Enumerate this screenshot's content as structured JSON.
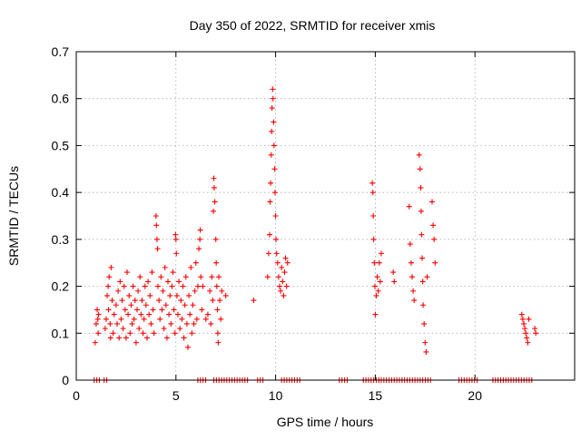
{
  "chart_data": {
    "type": "scatter",
    "title": "Day 350 of 2022, SRMTID for receiver xmis",
    "xlabel": "GPS time / hours",
    "ylabel": "SRMTID / TECUs",
    "xlim": [
      0,
      25
    ],
    "ylim": [
      0,
      0.7
    ],
    "xticks": [
      0,
      5,
      10,
      15,
      20
    ],
    "xtick_labels": [
      "0",
      "5",
      "10",
      "15",
      "20"
    ],
    "yticks": [
      0,
      0.1,
      0.2,
      0.3,
      0.4,
      0.5,
      0.6,
      0.7
    ],
    "ytick_labels": [
      "0",
      "0.1",
      "0.2",
      "0.3",
      "0.4",
      "0.5",
      "0.6",
      "0.7"
    ],
    "grid": true,
    "legend": "none",
    "marker": "plus",
    "color": "#ff0000",
    "series": [
      {
        "name": "SRMTID",
        "points": [
          [
            0.95,
            0.08
          ],
          [
            1.0,
            0.12
          ],
          [
            1.05,
            0.15
          ],
          [
            1.08,
            0.13
          ],
          [
            1.1,
            0.1
          ],
          [
            1.12,
            0.14
          ],
          [
            1.45,
            0.11
          ],
          [
            1.5,
            0.13
          ],
          [
            1.55,
            0.18
          ],
          [
            1.6,
            0.2
          ],
          [
            1.62,
            0.15
          ],
          [
            1.65,
            0.22
          ],
          [
            1.7,
            0.12
          ],
          [
            1.72,
            0.09
          ],
          [
            1.75,
            0.24
          ],
          [
            1.8,
            0.17
          ],
          [
            1.85,
            0.1
          ],
          [
            1.9,
            0.14
          ],
          [
            2.0,
            0.16
          ],
          [
            2.05,
            0.12
          ],
          [
            2.1,
            0.19
          ],
          [
            2.15,
            0.09
          ],
          [
            2.2,
            0.21
          ],
          [
            2.25,
            0.13
          ],
          [
            2.3,
            0.17
          ],
          [
            2.35,
            0.11
          ],
          [
            2.4,
            0.2
          ],
          [
            2.45,
            0.15
          ],
          [
            2.5,
            0.09
          ],
          [
            2.55,
            0.23
          ],
          [
            2.6,
            0.14
          ],
          [
            2.65,
            0.18
          ],
          [
            2.7,
            0.1
          ],
          [
            2.75,
            0.16
          ],
          [
            2.8,
            0.12
          ],
          [
            2.85,
            0.2
          ],
          [
            2.9,
            0.13
          ],
          [
            2.95,
            0.17
          ],
          [
            3.0,
            0.08
          ],
          [
            3.05,
            0.15
          ],
          [
            3.1,
            0.19
          ],
          [
            3.15,
            0.11
          ],
          [
            3.2,
            0.22
          ],
          [
            3.25,
            0.14
          ],
          [
            3.3,
            0.17
          ],
          [
            3.35,
            0.1
          ],
          [
            3.4,
            0.13
          ],
          [
            3.45,
            0.2
          ],
          [
            3.5,
            0.16
          ],
          [
            3.55,
            0.09
          ],
          [
            3.6,
            0.21
          ],
          [
            3.65,
            0.14
          ],
          [
            3.7,
            0.18
          ],
          [
            3.75,
            0.12
          ],
          [
            3.8,
            0.23
          ],
          [
            3.85,
            0.15
          ],
          [
            3.9,
            0.1
          ],
          [
            4.0,
            0.35
          ],
          [
            4.02,
            0.33
          ],
          [
            4.05,
            0.3
          ],
          [
            4.08,
            0.28
          ],
          [
            4.1,
            0.2
          ],
          [
            4.15,
            0.17
          ],
          [
            4.2,
            0.13
          ],
          [
            4.25,
            0.22
          ],
          [
            4.3,
            0.15
          ],
          [
            4.35,
            0.19
          ],
          [
            4.4,
            0.11
          ],
          [
            4.45,
            0.24
          ],
          [
            4.5,
            0.16
          ],
          [
            4.55,
            0.09
          ],
          [
            4.6,
            0.21
          ],
          [
            4.65,
            0.14
          ],
          [
            4.7,
            0.18
          ],
          [
            4.75,
            0.12
          ],
          [
            4.8,
            0.2
          ],
          [
            4.85,
            0.23
          ],
          [
            4.9,
            0.15
          ],
          [
            4.95,
            0.1
          ],
          [
            4.98,
            0.31
          ],
          [
            5.0,
            0.3
          ],
          [
            5.02,
            0.27
          ],
          [
            5.05,
            0.18
          ],
          [
            5.1,
            0.14
          ],
          [
            5.15,
            0.21
          ],
          [
            5.2,
            0.11
          ],
          [
            5.25,
            0.17
          ],
          [
            5.3,
            0.13
          ],
          [
            5.35,
            0.2
          ],
          [
            5.4,
            0.09
          ],
          [
            5.45,
            0.16
          ],
          [
            5.5,
            0.22
          ],
          [
            5.55,
            0.12
          ],
          [
            5.6,
            0.07
          ],
          [
            5.65,
            0.18
          ],
          [
            5.7,
            0.14
          ],
          [
            5.75,
            0.24
          ],
          [
            5.8,
            0.1
          ],
          [
            5.85,
            0.16
          ],
          [
            5.9,
            0.12
          ],
          [
            5.95,
            0.19
          ],
          [
            6.0,
            0.25
          ],
          [
            6.05,
            0.13
          ],
          [
            6.1,
            0.2
          ],
          [
            6.15,
            0.28
          ],
          [
            6.2,
            0.3
          ],
          [
            6.22,
            0.32
          ],
          [
            6.25,
            0.22
          ],
          [
            6.3,
            0.15
          ],
          [
            6.35,
            0.2
          ],
          [
            6.5,
            0.13
          ],
          [
            6.6,
            0.14
          ],
          [
            6.7,
            0.19
          ],
          [
            6.75,
            0.12
          ],
          [
            6.8,
            0.22
          ],
          [
            6.85,
            0.17
          ],
          [
            6.88,
            0.36
          ],
          [
            6.9,
            0.43
          ],
          [
            6.92,
            0.41
          ],
          [
            6.95,
            0.38
          ],
          [
            7.0,
            0.3
          ],
          [
            7.02,
            0.25
          ],
          [
            7.05,
            0.2
          ],
          [
            7.08,
            0.15
          ],
          [
            7.1,
            0.1
          ],
          [
            7.12,
            0.08
          ],
          [
            7.15,
            0.22
          ],
          [
            7.2,
            0.17
          ],
          [
            7.25,
            0.13
          ],
          [
            7.3,
            0.19
          ],
          [
            7.5,
            0.18
          ],
          [
            8.9,
            0.17
          ],
          [
            9.6,
            0.22
          ],
          [
            9.65,
            0.27
          ],
          [
            9.7,
            0.31
          ],
          [
            9.72,
            0.38
          ],
          [
            9.75,
            0.42
          ],
          [
            9.78,
            0.48
          ],
          [
            9.8,
            0.53
          ],
          [
            9.82,
            0.58
          ],
          [
            9.85,
            0.62
          ],
          [
            9.87,
            0.6
          ],
          [
            9.9,
            0.55
          ],
          [
            9.92,
            0.5
          ],
          [
            9.95,
            0.45
          ],
          [
            9.97,
            0.4
          ],
          [
            10.0,
            0.35
          ],
          [
            10.02,
            0.3
          ],
          [
            10.05,
            0.27
          ],
          [
            10.1,
            0.25
          ],
          [
            10.15,
            0.22
          ],
          [
            10.2,
            0.2
          ],
          [
            10.25,
            0.19
          ],
          [
            10.3,
            0.24
          ],
          [
            10.35,
            0.21
          ],
          [
            10.4,
            0.18
          ],
          [
            10.45,
            0.23
          ],
          [
            10.5,
            0.26
          ],
          [
            10.55,
            0.2
          ],
          [
            10.6,
            0.25
          ],
          [
            14.85,
            0.42
          ],
          [
            14.88,
            0.4
          ],
          [
            14.9,
            0.35
          ],
          [
            14.92,
            0.3
          ],
          [
            14.95,
            0.25
          ],
          [
            14.98,
            0.2
          ],
          [
            15.0,
            0.14
          ],
          [
            15.05,
            0.18
          ],
          [
            15.1,
            0.22
          ],
          [
            15.15,
            0.19
          ],
          [
            15.2,
            0.25
          ],
          [
            15.25,
            0.21
          ],
          [
            15.3,
            0.27
          ],
          [
            15.9,
            0.23
          ],
          [
            15.95,
            0.21
          ],
          [
            16.7,
            0.37
          ],
          [
            16.75,
            0.29
          ],
          [
            16.8,
            0.25
          ],
          [
            16.85,
            0.22
          ],
          [
            16.9,
            0.19
          ],
          [
            16.95,
            0.17
          ],
          [
            17.2,
            0.48
          ],
          [
            17.25,
            0.45
          ],
          [
            17.28,
            0.41
          ],
          [
            17.3,
            0.36
          ],
          [
            17.32,
            0.31
          ],
          [
            17.35,
            0.26
          ],
          [
            17.38,
            0.21
          ],
          [
            17.4,
            0.16
          ],
          [
            17.45,
            0.12
          ],
          [
            17.5,
            0.08
          ],
          [
            17.55,
            0.06
          ],
          [
            17.6,
            0.22
          ],
          [
            17.85,
            0.38
          ],
          [
            17.9,
            0.33
          ],
          [
            17.95,
            0.3
          ],
          [
            18.0,
            0.25
          ],
          [
            22.35,
            0.14
          ],
          [
            22.4,
            0.13
          ],
          [
            22.45,
            0.12
          ],
          [
            22.5,
            0.11
          ],
          [
            22.55,
            0.1
          ],
          [
            22.6,
            0.09
          ],
          [
            22.65,
            0.08
          ],
          [
            22.7,
            0.13
          ],
          [
            23.0,
            0.11
          ],
          [
            23.05,
            0.1
          ]
        ],
        "zero_x_ranges": [
          [
            0.9,
            1.2
          ],
          [
            1.4,
            1.6
          ],
          [
            6.1,
            6.6
          ],
          [
            6.9,
            8.7
          ],
          [
            9.1,
            9.4
          ],
          [
            10.3,
            11.3
          ],
          [
            13.2,
            13.6
          ],
          [
            14.4,
            15.3
          ],
          [
            15.3,
            17.8
          ],
          [
            19.2,
            20.2
          ],
          [
            20.9,
            22.9
          ]
        ]
      }
    ]
  }
}
